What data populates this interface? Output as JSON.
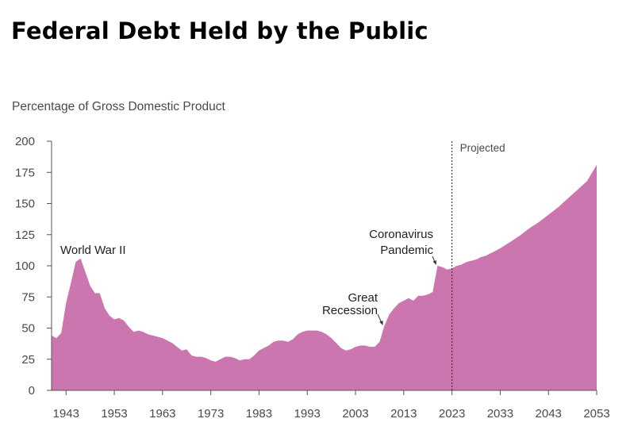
{
  "chart_data": {
    "type": "area",
    "title": "Federal Debt Held by the Public",
    "ylabel": "Percentage of Gross Domestic Product",
    "xlabel": "",
    "xlim": [
      1940,
      2053
    ],
    "ylim": [
      0,
      200
    ],
    "yticks": [
      0,
      25,
      50,
      75,
      100,
      125,
      150,
      175,
      200
    ],
    "xticks": [
      1943,
      1953,
      1963,
      1973,
      1983,
      1993,
      2003,
      2013,
      2023,
      2033,
      2043,
      2053
    ],
    "grid": false,
    "color": "#cc76b0",
    "series": [
      {
        "values": [
          [
            1940,
            44
          ],
          [
            1941,
            42
          ],
          [
            1942,
            46
          ],
          [
            1943,
            70
          ],
          [
            1944,
            86
          ],
          [
            1945,
            103
          ],
          [
            1946,
            106
          ],
          [
            1947,
            95
          ],
          [
            1948,
            84
          ],
          [
            1949,
            78
          ],
          [
            1950,
            78
          ],
          [
            1951,
            66
          ],
          [
            1952,
            60
          ],
          [
            1953,
            57
          ],
          [
            1954,
            58
          ],
          [
            1955,
            56
          ],
          [
            1956,
            51
          ],
          [
            1957,
            47
          ],
          [
            1958,
            48
          ],
          [
            1959,
            47
          ],
          [
            1960,
            45
          ],
          [
            1961,
            44
          ],
          [
            1962,
            43
          ],
          [
            1963,
            42
          ],
          [
            1964,
            40
          ],
          [
            1965,
            38
          ],
          [
            1966,
            35
          ],
          [
            1967,
            32
          ],
          [
            1968,
            33
          ],
          [
            1969,
            28
          ],
          [
            1970,
            27
          ],
          [
            1971,
            27
          ],
          [
            1972,
            26
          ],
          [
            1973,
            24
          ],
          [
            1974,
            23
          ],
          [
            1975,
            25
          ],
          [
            1976,
            27
          ],
          [
            1977,
            27
          ],
          [
            1978,
            26
          ],
          [
            1979,
            24
          ],
          [
            1980,
            25
          ],
          [
            1981,
            25
          ],
          [
            1982,
            28
          ],
          [
            1983,
            32
          ],
          [
            1984,
            34
          ],
          [
            1985,
            36
          ],
          [
            1986,
            39
          ],
          [
            1987,
            40
          ],
          [
            1988,
            40
          ],
          [
            1989,
            39
          ],
          [
            1990,
            41
          ],
          [
            1991,
            45
          ],
          [
            1992,
            47
          ],
          [
            1993,
            48
          ],
          [
            1994,
            48
          ],
          [
            1995,
            48
          ],
          [
            1996,
            47
          ],
          [
            1997,
            45
          ],
          [
            1998,
            42
          ],
          [
            1999,
            38
          ],
          [
            2000,
            34
          ],
          [
            2001,
            32
          ],
          [
            2002,
            33
          ],
          [
            2003,
            35
          ],
          [
            2004,
            36
          ],
          [
            2005,
            36
          ],
          [
            2006,
            35
          ],
          [
            2007,
            35
          ],
          [
            2008,
            39
          ],
          [
            2009,
            52
          ],
          [
            2010,
            61
          ],
          [
            2011,
            66
          ],
          [
            2012,
            70
          ],
          [
            2013,
            72
          ],
          [
            2014,
            74
          ],
          [
            2015,
            72
          ],
          [
            2016,
            76
          ],
          [
            2017,
            76
          ],
          [
            2018,
            77
          ],
          [
            2019,
            79
          ],
          [
            2020,
            100
          ],
          [
            2021,
            99
          ],
          [
            2022,
            97
          ],
          [
            2023,
            98
          ],
          [
            2024,
            100
          ],
          [
            2025,
            101
          ],
          [
            2026,
            103
          ],
          [
            2027,
            104
          ],
          [
            2028,
            105
          ],
          [
            2029,
            107
          ],
          [
            2030,
            108
          ],
          [
            2031,
            110
          ],
          [
            2032,
            112
          ],
          [
            2033,
            114
          ],
          [
            2035,
            119
          ],
          [
            2037,
            124
          ],
          [
            2039,
            130
          ],
          [
            2041,
            135
          ],
          [
            2043,
            141
          ],
          [
            2045,
            147
          ],
          [
            2047,
            154
          ],
          [
            2049,
            161
          ],
          [
            2051,
            168
          ],
          [
            2053,
            181
          ]
        ]
      }
    ],
    "projection": {
      "x": 2023,
      "label": "Projected"
    },
    "annotations": [
      {
        "lines": [
          "World War II"
        ],
        "x": 1946,
        "y": 106
      },
      {
        "lines": [
          "Great",
          "Recession"
        ],
        "x": 2009,
        "y": 52
      },
      {
        "lines": [
          "Coronavirus",
          "Pandemic"
        ],
        "x": 2020,
        "y": 100
      }
    ]
  }
}
